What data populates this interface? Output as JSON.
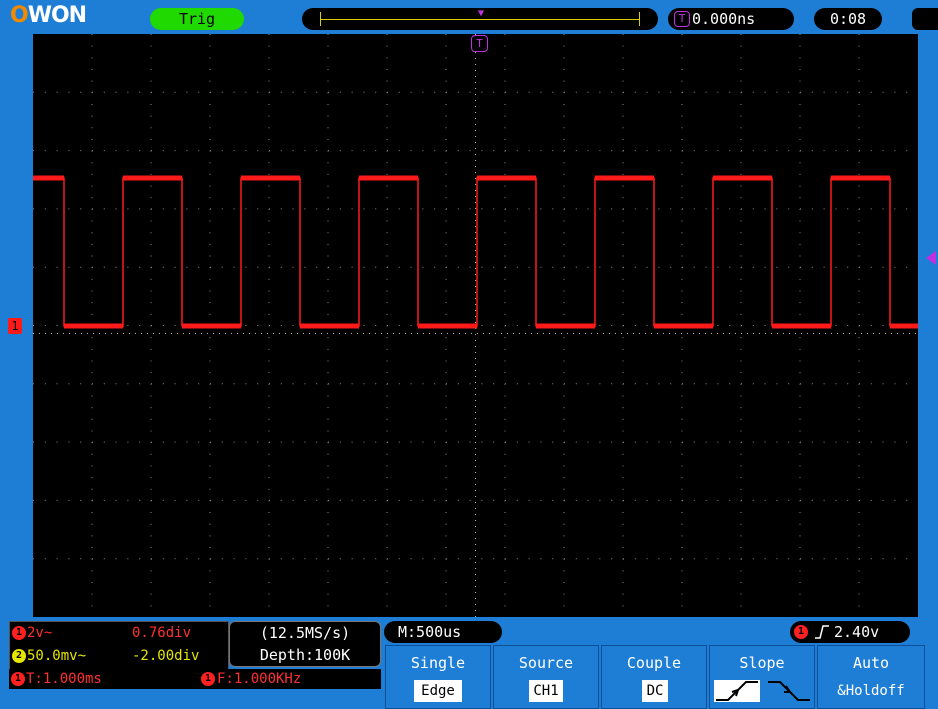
{
  "header": {
    "logo": "OWON",
    "trigger_status": "Trig",
    "trigger_delay": "0.000ns",
    "clock": "0:08"
  },
  "markers": {
    "trigger_position": "T",
    "ch1_ground": "1"
  },
  "channels": {
    "ch1": {
      "badge": "1",
      "scale": "2v~",
      "offset": "0.76div",
      "color": "#ff2020"
    },
    "ch2": {
      "badge": "2",
      "scale": "50.0mv~",
      "offset": "-2.00div",
      "color": "#e6e600"
    }
  },
  "measure": {
    "period_badge": "1",
    "period": "T:1.000ms",
    "freq_badge": "1",
    "frequency": "F:1.000KHz"
  },
  "acquisition": {
    "sample_rate": "(12.5MS/s)",
    "depth": "Depth:100K"
  },
  "timebase": "M:500us",
  "trigger_readout": {
    "badge": "1",
    "level": "2.40v"
  },
  "softkeys": [
    {
      "label": "Single",
      "value": "Edge"
    },
    {
      "label": "Source",
      "value": "CH1"
    },
    {
      "label": "Couple",
      "value": "DC"
    },
    {
      "label": "Slope",
      "value": ""
    },
    {
      "label": "Auto",
      "value": "&Holdoff"
    }
  ],
  "waveform": {
    "type": "square",
    "channel": "ch1",
    "cycles_visible": 7.5,
    "color": "#ff1a1a"
  }
}
